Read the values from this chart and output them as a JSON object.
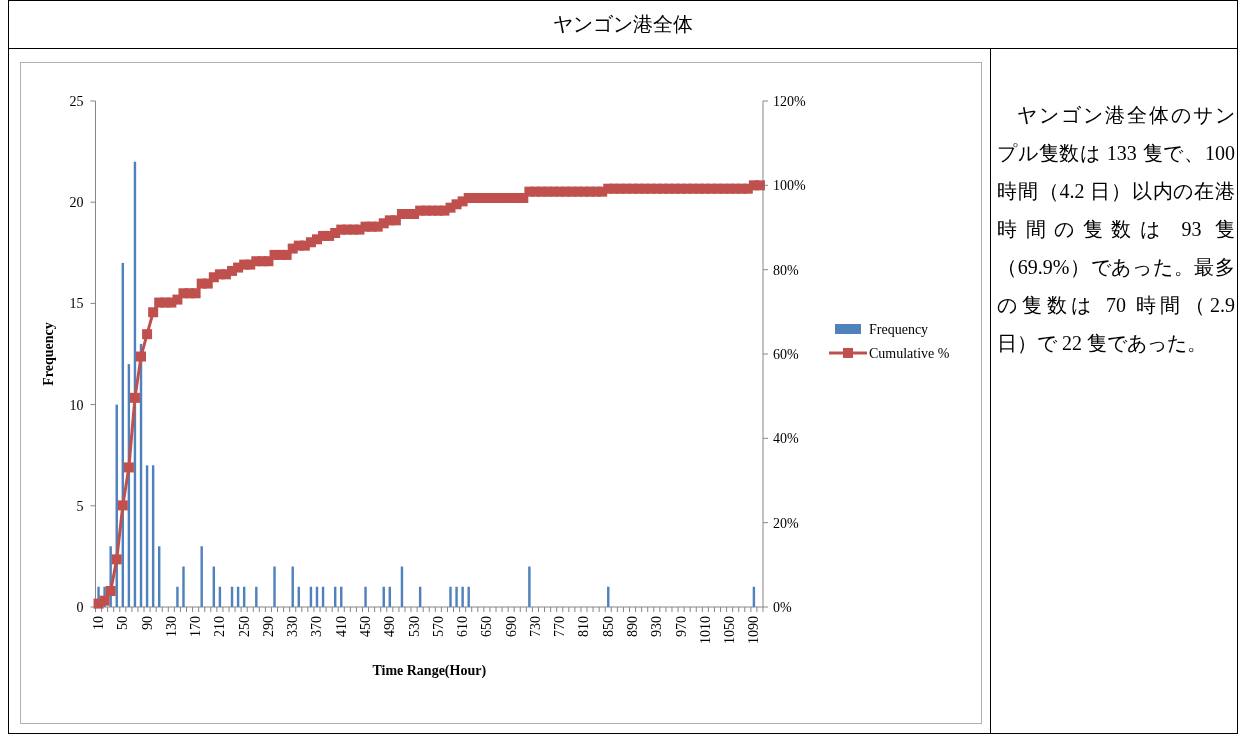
{
  "chart_data": [
    {
      "type": "bar",
      "title": "ヤンゴン港全体",
      "xlabel": "Time Range(Hour)",
      "ylabel": "Frequency",
      "categories": [
        "10",
        null,
        null,
        null,
        "50",
        null,
        null,
        null,
        "90",
        null,
        null,
        null,
        "130",
        null,
        null,
        null,
        "170",
        null,
        null,
        null,
        "210",
        null,
        null,
        null,
        "250",
        null,
        null,
        null,
        "290",
        null,
        null,
        null,
        "330",
        null,
        null,
        null,
        "370",
        null,
        null,
        null,
        "410",
        null,
        null,
        null,
        "450",
        null,
        null,
        null,
        "490",
        null,
        null,
        null,
        "530",
        null,
        null,
        null,
        "570",
        null,
        null,
        null,
        "610",
        null,
        null,
        null,
        "650",
        null,
        null,
        null,
        "690",
        null,
        null,
        null,
        "730",
        null,
        null,
        null,
        "770",
        null,
        null,
        null,
        "810",
        null,
        null,
        null,
        "850",
        null,
        null,
        null,
        "890",
        null,
        null,
        null,
        "930",
        null,
        null,
        null,
        "970",
        null,
        null,
        null,
        "1010",
        null,
        null,
        null,
        "1050",
        null,
        null,
        null,
        "1090",
        null
      ],
      "series": [
        {
          "name": "Frequency",
          "type": "bar",
          "color": "#4f81bd",
          "values": [
            1,
            1,
            3,
            10,
            17,
            12,
            22,
            13,
            7,
            7,
            3,
            0,
            0,
            1,
            2,
            0,
            0,
            3,
            0,
            2,
            1,
            0,
            1,
            1,
            1,
            0,
            1,
            0,
            0,
            2,
            0,
            0,
            2,
            1,
            0,
            1,
            1,
            1,
            0,
            1,
            1,
            0,
            0,
            0,
            1,
            0,
            0,
            1,
            1,
            0,
            2,
            0,
            0,
            1,
            0,
            0,
            0,
            0,
            1,
            1,
            1,
            1,
            0,
            0,
            0,
            0,
            0,
            0,
            0,
            0,
            0,
            2,
            0,
            0,
            0,
            0,
            0,
            0,
            0,
            0,
            0,
            0,
            0,
            0,
            1,
            0,
            0,
            0,
            0,
            0,
            0,
            0,
            0,
            0,
            0,
            0,
            0,
            0,
            0,
            0,
            0,
            0,
            0,
            0,
            0,
            0,
            0,
            0,
            1,
            0
          ]
        },
        {
          "name": "Cumulative %",
          "type": "line",
          "axis": "y2",
          "marker": "square",
          "color": "#c0504d",
          "values": [
            0.8,
            1.5,
            3.8,
            11.3,
            24.1,
            33.1,
            49.6,
            59.4,
            64.7,
            69.9,
            72.2,
            72.2,
            72.2,
            72.9,
            74.4,
            74.4,
            74.4,
            76.7,
            76.7,
            78.2,
            78.9,
            78.9,
            79.7,
            80.5,
            81.2,
            81.2,
            82.0,
            82.0,
            82.0,
            83.5,
            83.5,
            83.5,
            85.0,
            85.7,
            85.7,
            86.5,
            87.2,
            88.0,
            88.0,
            88.7,
            89.5,
            89.5,
            89.5,
            89.5,
            90.2,
            90.2,
            90.2,
            91.0,
            91.7,
            91.7,
            93.2,
            93.2,
            93.2,
            94.0,
            94.0,
            94.0,
            94.0,
            94.0,
            94.7,
            95.5,
            96.2,
            97.0,
            97.0,
            97.0,
            97.0,
            97.0,
            97.0,
            97.0,
            97.0,
            97.0,
            97.0,
            98.5,
            98.5,
            98.5,
            98.5,
            98.5,
            98.5,
            98.5,
            98.5,
            98.5,
            98.5,
            98.5,
            98.5,
            98.5,
            99.2,
            99.2,
            99.2,
            99.2,
            99.2,
            99.2,
            99.2,
            99.2,
            99.2,
            99.2,
            99.2,
            99.2,
            99.2,
            99.2,
            99.2,
            99.2,
            99.2,
            99.2,
            99.2,
            99.2,
            99.2,
            99.2,
            99.2,
            99.2,
            100,
            100
          ]
        }
      ],
      "ylim": [
        0,
        25
      ],
      "yticks": [
        0,
        5,
        10,
        15,
        20,
        25
      ],
      "y2lim": [
        0,
        120
      ],
      "y2ticks": [
        {
          "value": 0,
          "label": "0%"
        },
        {
          "value": 20,
          "label": "20%"
        },
        {
          "value": 40,
          "label": "40%"
        },
        {
          "value": 60,
          "label": "60%"
        },
        {
          "value": 80,
          "label": "80%"
        },
        {
          "value": 100,
          "label": "100%"
        },
        {
          "value": 120,
          "label": "120%"
        }
      ],
      "legend": "right"
    },
    {
      "type": "other",
      "annotations": [
        "ヤンゴン港全体のサンプル隻数は 133 隻で、100 時間（4.2 日）以内の在港時間の隻数は 93 隻（69.9%）であった。最多の隻数は 70 時間（2.9 日）で 22 隻であった。"
      ]
    }
  ]
}
